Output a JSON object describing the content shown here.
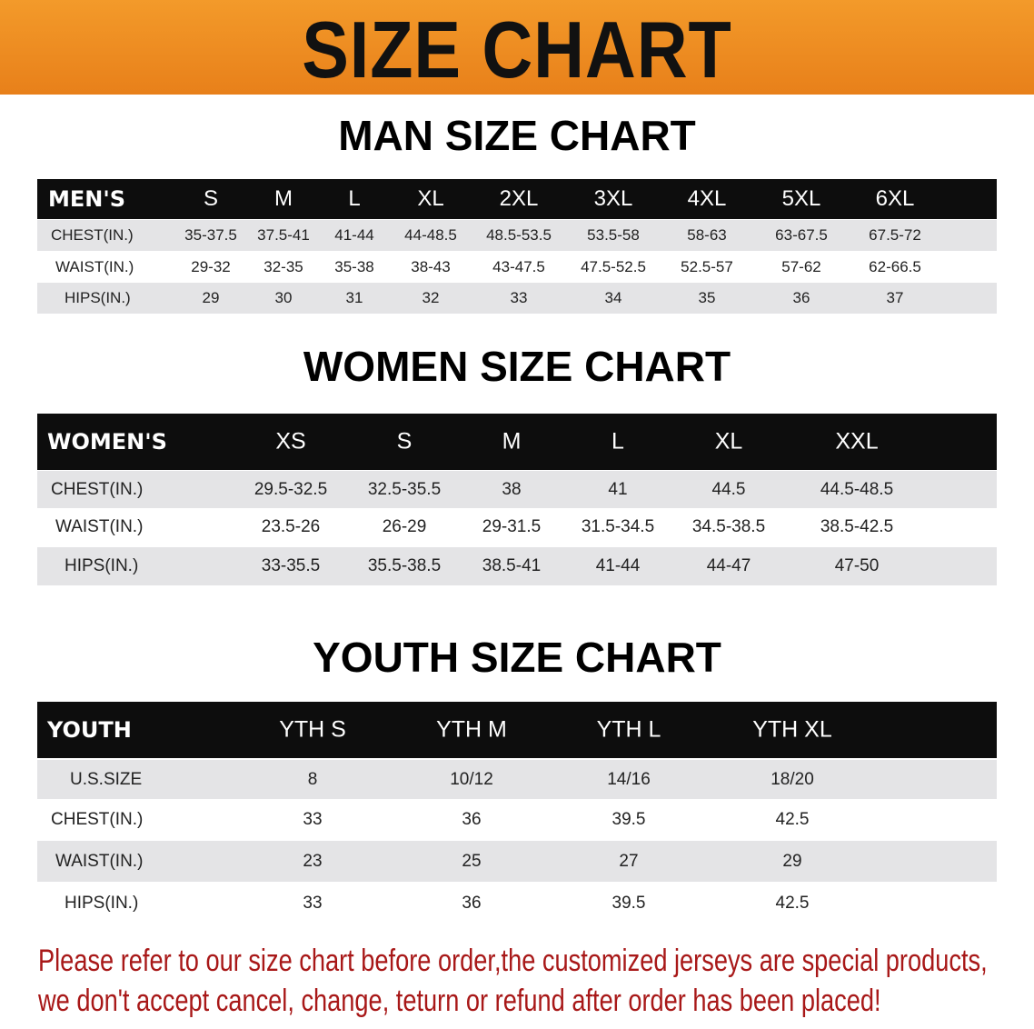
{
  "banner": {
    "title": "SIZE CHART",
    "color": "#ee8a1f"
  },
  "men": {
    "title": "MAN SIZE CHART",
    "header": [
      "MEN'S",
      "S",
      "M",
      "L",
      "XL",
      "2XL",
      "3XL",
      "4XL",
      "5XL",
      "6XL"
    ],
    "rows": [
      [
        "CHEST(IN.)",
        "35-37.5",
        "37.5-41",
        "41-44",
        "44-48.5",
        "48.5-53.5",
        "53.5-58",
        "58-63",
        "63-67.5",
        "67.5-72"
      ],
      [
        "WAIST(IN.)",
        "29-32",
        "32-35",
        "35-38",
        "38-43",
        "43-47.5",
        "47.5-52.5",
        "52.5-57",
        "57-62",
        "62-66.5"
      ],
      [
        "HIPS(IN.)",
        "29",
        "30",
        "31",
        "32",
        "33",
        "34",
        "35",
        "36",
        "37"
      ]
    ]
  },
  "women": {
    "title": "WOMEN SIZE CHART",
    "header": [
      "WOMEN'S",
      "XS",
      "S",
      "M",
      "L",
      "XL",
      "XXL"
    ],
    "rows": [
      [
        "CHEST(IN.)",
        "29.5-32.5",
        "32.5-35.5",
        "38",
        "41",
        "44.5",
        "44.5-48.5"
      ],
      [
        "WAIST(IN.)",
        "23.5-26",
        "26-29",
        "29-31.5",
        "31.5-34.5",
        "34.5-38.5",
        "38.5-42.5"
      ],
      [
        "HIPS(IN.)",
        "33-35.5",
        "35.5-38.5",
        "38.5-41",
        "41-44",
        "44-47",
        "47-50"
      ]
    ]
  },
  "youth": {
    "title": "YOUTH SIZE CHART",
    "header": [
      "YOUTH",
      "YTH S",
      "YTH M",
      "YTH L",
      "YTH XL"
    ],
    "rows": [
      [
        "U.S.SIZE",
        "8",
        "10/12",
        "14/16",
        "18/20"
      ],
      [
        "CHEST(IN.)",
        "33",
        "36",
        "39.5",
        "42.5"
      ],
      [
        "WAIST(IN.)",
        "23",
        "25",
        "27",
        "29"
      ],
      [
        "HIPS(IN.)",
        "33",
        "36",
        "39.5",
        "42.5"
      ]
    ]
  },
  "notice": {
    "line1": "Please refer to our size chart before order,the customized jerseys are special products,",
    "line2": "we don't accept cancel, change, teturn or refund after order has been placed!",
    "color": "#a81818"
  }
}
